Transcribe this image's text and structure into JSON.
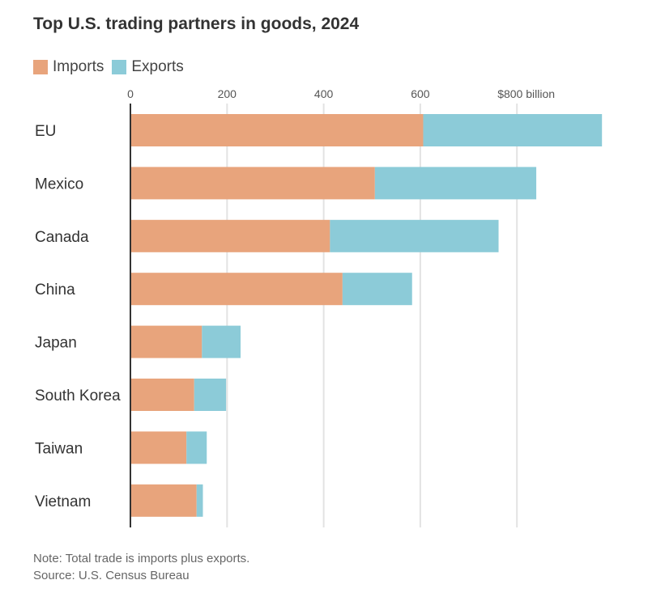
{
  "title": "Top U.S. trading partners in goods, 2024",
  "legend": {
    "imports_label": "Imports",
    "exports_label": "Exports"
  },
  "colors": {
    "imports": "#e8a47c",
    "exports": "#8ccbd8",
    "grid": "#e3e3e3",
    "axis": "#333333"
  },
  "chart_data": {
    "type": "bar",
    "orientation": "horizontal",
    "stacked": true,
    "title": "Top U.S. trading partners in goods, 2024",
    "xlabel": "",
    "ylabel": "",
    "xlim": [
      0,
      980
    ],
    "x_ticks": [
      0,
      200,
      400,
      600,
      800
    ],
    "x_tick_labels": [
      "0",
      "200",
      "400",
      "600",
      "$800 billion"
    ],
    "grid": true,
    "legend_position": "top-left",
    "categories": [
      "EU",
      "Mexico",
      "Canada",
      "China",
      "Japan",
      "South Korea",
      "Taiwan",
      "Vietnam"
    ],
    "series": [
      {
        "name": "Imports",
        "values": [
          606,
          506,
          413,
          439,
          148,
          132,
          116,
          137
        ]
      },
      {
        "name": "Exports",
        "values": [
          370,
          334,
          349,
          144,
          80,
          66,
          42,
          13
        ]
      }
    ]
  },
  "footnote": {
    "note": "Note: Total trade is imports plus exports.",
    "source": "Source: U.S. Census Bureau"
  }
}
